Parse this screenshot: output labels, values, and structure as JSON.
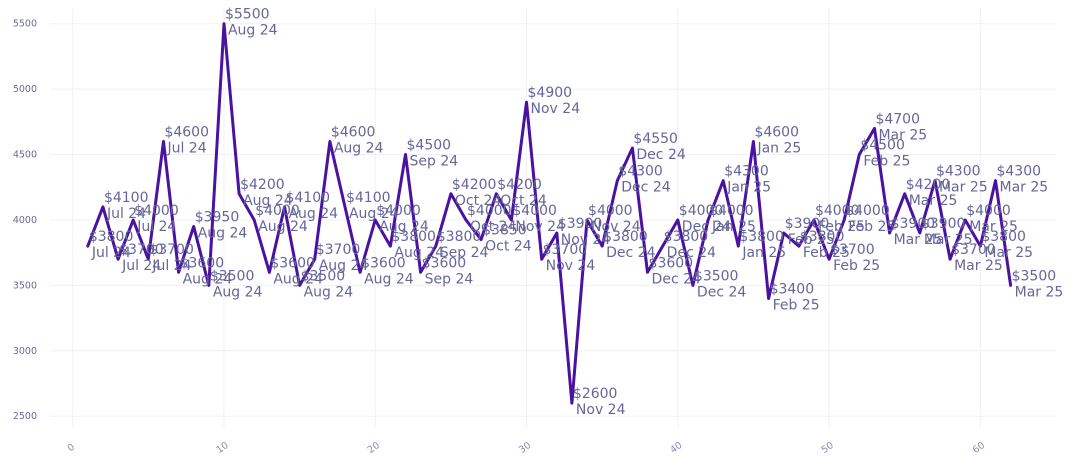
{
  "chart_data": {
    "type": "line",
    "title": "",
    "xlabel": "",
    "ylabel": "",
    "xlim": [
      -1.5,
      65
    ],
    "ylim": [
      2410,
      5620
    ],
    "x_ticks": [
      0,
      10,
      20,
      30,
      40,
      50,
      60
    ],
    "y_ticks": [
      2500,
      3000,
      3500,
      4000,
      4500,
      5000,
      5500
    ],
    "grid": true,
    "legend": "none",
    "colors": {
      "line": "#4a12a0",
      "label": "#66669a",
      "grid": "#f0f0f6"
    },
    "series": [
      {
        "x": [
          1,
          2,
          3,
          4,
          5,
          6,
          7,
          8,
          9,
          10,
          11,
          12,
          13,
          14,
          15,
          16,
          17,
          18,
          19,
          20,
          21,
          22,
          23,
          24,
          25,
          26,
          27,
          28,
          29,
          30,
          31,
          32,
          33,
          34,
          35,
          36,
          37,
          38,
          39,
          40,
          41,
          42,
          43,
          44,
          45,
          46,
          47,
          48,
          49,
          50,
          51,
          52,
          53,
          54,
          55,
          56,
          57,
          58,
          59,
          60,
          61,
          62
        ],
        "values": [
          3800,
          4100,
          3700,
          4000,
          3700,
          4600,
          3600,
          3950,
          3500,
          5500,
          4200,
          4000,
          3600,
          4100,
          3500,
          3700,
          4600,
          4100,
          3600,
          4000,
          3800,
          4500,
          3600,
          3800,
          4200,
          4000,
          3850,
          4200,
          4000,
          4900,
          3700,
          3900,
          2600,
          4000,
          3800,
          4300,
          4550,
          3600,
          3800,
          4000,
          3500,
          4000,
          4300,
          3800,
          4600,
          3400,
          3900,
          3800,
          4000,
          3700,
          4000,
          4500,
          4700,
          3900,
          4200,
          3900,
          4300,
          3700,
          4000,
          3800,
          4300,
          3500
        ]
      }
    ],
    "annotations": {
      "prices": [
        "$3800",
        "$4100",
        "$3700",
        "$4000",
        "$3700",
        "$4600",
        "$3600",
        "$3950",
        "$3500",
        "$5500",
        "$4200",
        "$4000",
        "$3600",
        "$4100",
        "$3500",
        "$3700",
        "$4600",
        "$4100",
        "$3600",
        "$4000",
        "$3800",
        "$4500",
        "$3600",
        "$3800",
        "$4200",
        "$4000",
        "$3850",
        "$4200",
        "$4000",
        "$4900",
        "$3700",
        "$3900",
        "$2600",
        "$4000",
        "$3800",
        "$4300",
        "$4550",
        "$3600",
        "$3800",
        "$4000",
        "$3500",
        "$4000",
        "$4300",
        "$3800",
        "$4600",
        "$3400",
        "$3900",
        "$3800",
        "$4000",
        "$3700",
        "$4000",
        "$4500",
        "$4700",
        "$3900",
        "$4200",
        "$3900",
        "$4300",
        "$3700",
        "$4000",
        "$3800",
        "$4300",
        "$3500"
      ],
      "months": [
        "Jul 24",
        "Jul 24",
        "Jul 24",
        "Jul 24",
        "Jul 24",
        "Jul 24",
        "Aug 24",
        "Aug 24",
        "Aug 24",
        "Aug 24",
        "Aug 24",
        "Aug 24",
        "Aug 24",
        "Aug 24",
        "Aug 24",
        "Aug 24",
        "Aug 24",
        "Aug 24",
        "Aug 24",
        "Aug 24",
        "Aug 24",
        "Sep 24",
        "Sep 24",
        "Sep 24",
        "Oct 24",
        "Oct 24",
        "Oct 24",
        "Oct 24",
        "Nov 24",
        "Nov 24",
        "Nov 24",
        "Nov 24",
        "Nov 24",
        "Nov 24",
        "Dec 24",
        "Dec 24",
        "Dec 24",
        "Dec 24",
        "Dec 24",
        "Dec 24",
        "Dec 24",
        "Jan 25",
        "Jan 25",
        "Jan 25",
        "Jan 25",
        "Feb 25",
        "Feb 25",
        "Feb 25",
        "Feb 25",
        "Feb 25",
        "Feb 25",
        "Feb 25",
        "Mar 25",
        "Mar 25",
        "Mar 25",
        "Mar 25",
        "Mar 25",
        "Mar 25",
        "Mar 25",
        "Mar 25",
        "Mar 25",
        "Mar 25"
      ]
    }
  }
}
